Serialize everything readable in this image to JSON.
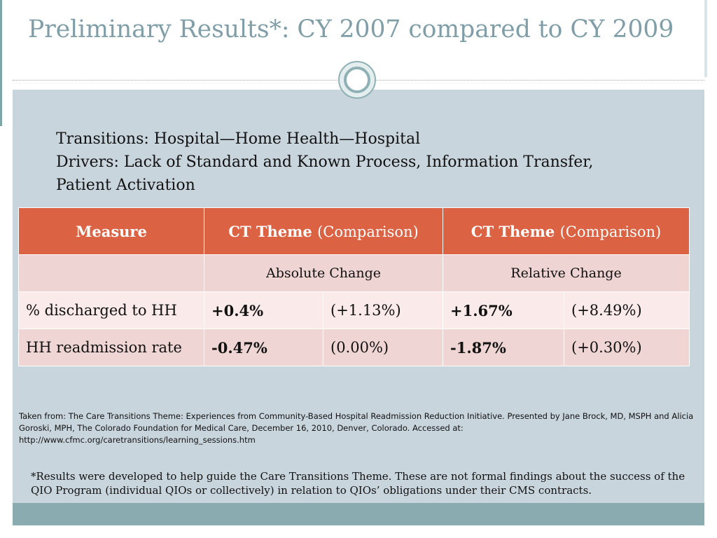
{
  "slide": {
    "title": "Preliminary Results*:  CY 2007 compared to CY 2009",
    "transitions_line": "Transitions:  Hospital—Home Health—Hospital",
    "drivers_line1": "Drivers:  Lack of Standard and Known Process, Information Transfer,",
    "drivers_line2": "Patient Activation"
  },
  "table": {
    "headers": {
      "measure": "Measure",
      "col1_bold": "CT Theme",
      "col1_normal": "(Comparison)",
      "col2_bold": "CT Theme",
      "col2_normal": "(Comparison)"
    },
    "subheaders": [
      "",
      "Absolute Change",
      "Relative Change"
    ],
    "rows": [
      {
        "measure": "% discharged to HH",
        "abs_ct": "+0.4%",
        "abs_comp": "(+1.13%)",
        "rel_ct": "+1.67%",
        "rel_comp": "(+8.49%)"
      },
      {
        "measure": "HH readmission rate",
        "abs_ct": "-0.47%",
        "abs_comp": "(0.00%)",
        "rel_ct": "-1.87%",
        "rel_comp": "(+0.30%)"
      }
    ]
  },
  "source": {
    "line1": "Taken from:  The Care Transitions Theme: Experiences from Community-Based Hospital Readmission Reduction Initiative.  Presented by Jane Brock, MD, MSPH and Alicia",
    "line2": "Goroski, MPH, The Colorado Foundation for Medical Care, December 16, 2010, Denver, Colorado.  Accessed at:",
    "line3": "http://www.cfmc.org/caretransitions/learning_sessions.htm"
  },
  "note": {
    "text": "*Results were developed to help guide the Care Transitions Theme.  These are not formal findings about the success of the QIO Program (individual QIOs or collectively) in relation to QIOs’ obligations under their CMS contracts."
  },
  "colors": {
    "title": "#7f9ea7",
    "panel": "#c9d5dd",
    "header": "#dc6244",
    "footer": "#8aabb0"
  }
}
